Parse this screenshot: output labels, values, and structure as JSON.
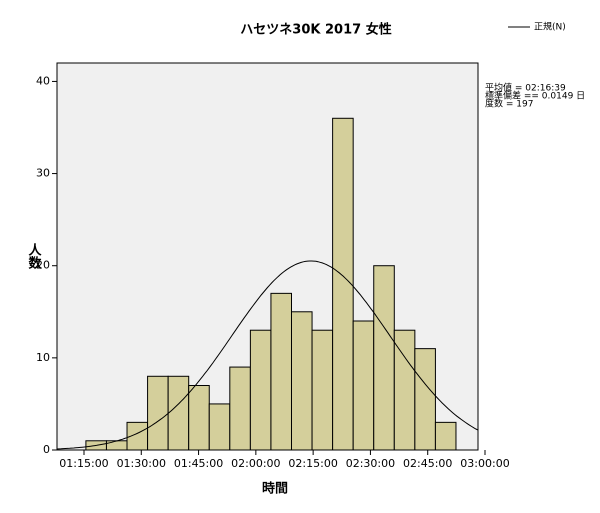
{
  "chart_data": {
    "type": "histogram",
    "title": "ハセツネ30K 2017 女性",
    "x_label": "時間",
    "y_label": "人数",
    "bins": [
      4530,
      4853,
      5176,
      5499,
      5822,
      6145,
      6468,
      6791,
      7114,
      7437,
      7760,
      8083,
      8406,
      8729,
      9052,
      9375,
      9698,
      10021,
      10344
    ],
    "values": [
      1,
      1,
      3,
      8,
      8,
      7,
      5,
      9,
      13,
      17,
      15,
      13,
      36,
      14,
      20,
      13,
      11,
      3
    ],
    "color": "#d4cf9b",
    "xlim": [
      4076,
      10690
    ],
    "xticks": [
      {
        "value": 4500,
        "label": "01:15:00"
      },
      {
        "value": 5400,
        "label": "01:30:00"
      },
      {
        "value": 6300,
        "label": "01:45:00"
      },
      {
        "value": 7200,
        "label": "02:00:00"
      },
      {
        "value": 8100,
        "label": "02:15:00"
      },
      {
        "value": 9000,
        "label": "02:30:00"
      },
      {
        "value": 9900,
        "label": "02:45:00"
      },
      {
        "value": 10800,
        "label": "03:00:00"
      }
    ],
    "ylim": [
      0,
      42
    ],
    "yticks": [
      0,
      10,
      20,
      30,
      40
    ],
    "curve": {
      "name": "正規(N)",
      "color": "#000000"
    },
    "stats": [
      "平均値 = 02:16:39",
      "標準偏差 == 0.0149 日",
      "度数 = 197"
    ]
  }
}
